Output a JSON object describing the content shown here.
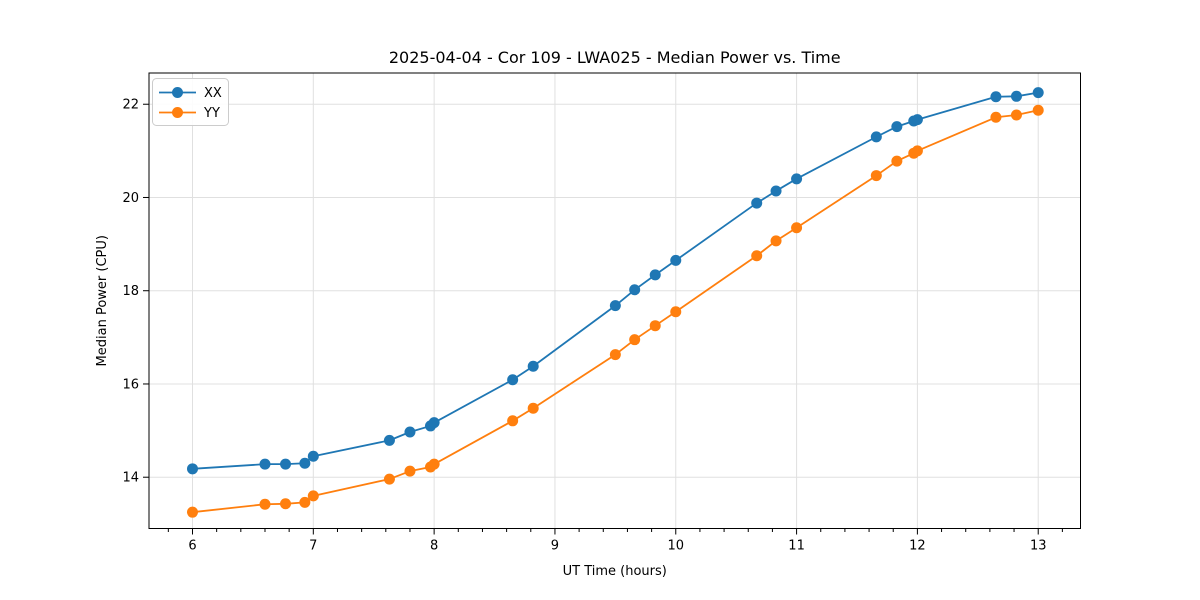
{
  "figure": {
    "background": "#ffffff"
  },
  "chart_data": {
    "type": "line",
    "title": "2025-04-04 - Cor 109 - LWA025 - Median Power vs. Time",
    "xlabel": "UT Time (hours)",
    "ylabel": "Median Power (CPU)",
    "xlim": [
      5.64,
      13.35
    ],
    "ylim": [
      12.9,
      22.67
    ],
    "x_major_ticks": [
      6,
      7,
      8,
      9,
      10,
      11,
      12,
      13
    ],
    "x_minor_tick_step": 0.2,
    "y_major_ticks": [
      14,
      16,
      18,
      20,
      22
    ],
    "grid": true,
    "grid_color": "#e0e0e0",
    "spine_color": "#000000",
    "legend_position": "upper-left",
    "x": [
      6.0,
      6.6,
      6.77,
      6.93,
      7.0,
      7.63,
      7.8,
      7.97,
      8.0,
      8.65,
      8.82,
      9.5,
      9.66,
      9.83,
      10.0,
      10.67,
      10.83,
      11.0,
      11.66,
      11.83,
      11.97,
      12.0,
      12.65,
      12.82,
      13.0
    ],
    "series": [
      {
        "name": "XX",
        "color": "#1f77b4",
        "values": [
          14.18,
          14.28,
          14.28,
          14.3,
          14.45,
          14.79,
          14.97,
          15.1,
          15.17,
          16.09,
          16.38,
          17.68,
          18.02,
          18.34,
          18.65,
          19.88,
          20.14,
          20.4,
          21.3,
          21.52,
          21.64,
          21.67,
          22.16,
          22.17,
          22.25
        ]
      },
      {
        "name": "YY",
        "color": "#ff7f0e",
        "values": [
          13.25,
          13.42,
          13.43,
          13.46,
          13.6,
          13.96,
          14.13,
          14.22,
          14.28,
          15.21,
          15.48,
          16.63,
          16.95,
          17.25,
          17.55,
          18.75,
          19.07,
          19.35,
          20.47,
          20.78,
          20.95,
          21.0,
          21.72,
          21.77,
          21.87
        ]
      }
    ]
  }
}
